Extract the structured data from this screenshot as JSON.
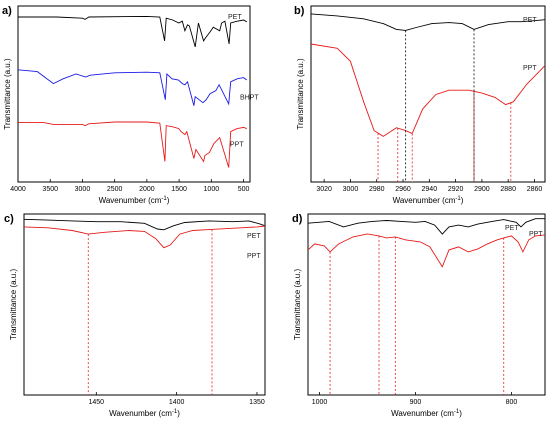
{
  "chart_data": [
    {
      "panel": "a)",
      "type": "line",
      "xlabel": "Wavenumber (cm",
      "xlabel_sup": "-1",
      "ylabel": "Transmittance (a.u.)",
      "x_ticks": [
        4000,
        3500,
        3000,
        2500,
        2000,
        1500,
        1000,
        500
      ],
      "x_tick_labels": [
        "4000",
        "3500",
        "3000",
        "2500",
        "2000",
        "1500",
        "1000",
        "500"
      ],
      "xlim": [
        4000,
        400
      ],
      "series": [
        {
          "name": "PET",
          "color": "#000000",
          "points": [
            [
              4000,
              0.95
            ],
            [
              3600,
              0.95
            ],
            [
              3400,
              0.95
            ],
            [
              3000,
              0.93
            ],
            [
              2960,
              0.91
            ],
            [
              2900,
              0.95
            ],
            [
              2000,
              0.96
            ],
            [
              1800,
              0.95
            ],
            [
              1725,
              0.55
            ],
            [
              1700,
              0.93
            ],
            [
              1600,
              0.9
            ],
            [
              1505,
              0.85
            ],
            [
              1450,
              0.88
            ],
            [
              1410,
              0.72
            ],
            [
              1370,
              0.82
            ],
            [
              1340,
              0.8
            ],
            [
              1250,
              0.45
            ],
            [
              1200,
              0.85
            ],
            [
              1120,
              0.55
            ],
            [
              1090,
              0.6
            ],
            [
              1020,
              0.7
            ],
            [
              970,
              0.78
            ],
            [
              870,
              0.72
            ],
            [
              840,
              0.85
            ],
            [
              790,
              0.88
            ],
            [
              725,
              0.5
            ],
            [
              700,
              0.85
            ],
            [
              600,
              0.88
            ],
            [
              500,
              0.9
            ],
            [
              450,
              0.87
            ]
          ]
        },
        {
          "name": "BHPT",
          "color": "#1a1ae6",
          "points": [
            [
              4000,
              0.95
            ],
            [
              3700,
              0.92
            ],
            [
              3450,
              0.72
            ],
            [
              3300,
              0.8
            ],
            [
              3100,
              0.88
            ],
            [
              2950,
              0.83
            ],
            [
              2880,
              0.86
            ],
            [
              2500,
              0.9
            ],
            [
              2000,
              0.91
            ],
            [
              1800,
              0.9
            ],
            [
              1715,
              0.45
            ],
            [
              1690,
              0.88
            ],
            [
              1610,
              0.8
            ],
            [
              1510,
              0.78
            ],
            [
              1450,
              0.72
            ],
            [
              1410,
              0.7
            ],
            [
              1370,
              0.75
            ],
            [
              1270,
              0.35
            ],
            [
              1250,
              0.5
            ],
            [
              1130,
              0.4
            ],
            [
              1080,
              0.45
            ],
            [
              1020,
              0.55
            ],
            [
              930,
              0.6
            ],
            [
              880,
              0.7
            ],
            [
              730,
              0.38
            ],
            [
              700,
              0.75
            ],
            [
              600,
              0.8
            ],
            [
              500,
              0.82
            ],
            [
              450,
              0.78
            ]
          ]
        },
        {
          "name": "PPT",
          "color": "#e61a1a",
          "points": [
            [
              4000,
              0.95
            ],
            [
              3600,
              0.95
            ],
            [
              3450,
              0.92
            ],
            [
              3000,
              0.92
            ],
            [
              2960,
              0.9
            ],
            [
              2900,
              0.93
            ],
            [
              2500,
              0.96
            ],
            [
              2000,
              0.96
            ],
            [
              1800,
              0.94
            ],
            [
              1720,
              0.3
            ],
            [
              1700,
              0.9
            ],
            [
              1600,
              0.88
            ],
            [
              1505,
              0.85
            ],
            [
              1470,
              0.8
            ],
            [
              1410,
              0.75
            ],
            [
              1380,
              0.8
            ],
            [
              1270,
              0.35
            ],
            [
              1240,
              0.5
            ],
            [
              1120,
              0.3
            ],
            [
              1100,
              0.4
            ],
            [
              1030,
              0.45
            ],
            [
              960,
              0.6
            ],
            [
              870,
              0.7
            ],
            [
              730,
              0.2
            ],
            [
              700,
              0.8
            ],
            [
              600,
              0.85
            ],
            [
              500,
              0.87
            ],
            [
              450,
              0.85
            ]
          ]
        }
      ]
    },
    {
      "panel": "b)",
      "type": "line",
      "xlabel": "Wavenumber (cm",
      "xlabel_sup": "-1",
      "ylabel": "Transmittance (a.u.)",
      "x_ticks": [
        3020,
        3000,
        2980,
        2960,
        2940,
        2920,
        2900,
        2880,
        2860
      ],
      "x_tick_labels": [
        "3020",
        "3000",
        "2980",
        "2960",
        "2940",
        "2920",
        "2900",
        "2880",
        "2860"
      ],
      "xlim": [
        3030,
        2852
      ],
      "marked_x": [
        2979,
        2964,
        2953,
        2906,
        2878
      ],
      "series": [
        {
          "name": "PET",
          "color": "#000000",
          "points": [
            [
              3030,
              0.98
            ],
            [
              3010,
              0.96
            ],
            [
              2990,
              0.93
            ],
            [
              2975,
              0.88
            ],
            [
              2965,
              0.82
            ],
            [
              2958,
              0.81
            ],
            [
              2950,
              0.84
            ],
            [
              2938,
              0.88
            ],
            [
              2925,
              0.89
            ],
            [
              2915,
              0.88
            ],
            [
              2906,
              0.82
            ],
            [
              2895,
              0.87
            ],
            [
              2880,
              0.9
            ],
            [
              2870,
              0.9
            ],
            [
              2860,
              0.91
            ],
            [
              2852,
              0.92
            ]
          ]
        },
        {
          "name": "PPT",
          "color": "#e61a1a",
          "points": [
            [
              3030,
              0.8
            ],
            [
              3010,
              0.77
            ],
            [
              3000,
              0.68
            ],
            [
              2990,
              0.4
            ],
            [
              2982,
              0.2
            ],
            [
              2975,
              0.16
            ],
            [
              2965,
              0.22
            ],
            [
              2958,
              0.2
            ],
            [
              2953,
              0.18
            ],
            [
              2945,
              0.35
            ],
            [
              2935,
              0.45
            ],
            [
              2925,
              0.48
            ],
            [
              2910,
              0.48
            ],
            [
              2900,
              0.46
            ],
            [
              2890,
              0.43
            ],
            [
              2882,
              0.38
            ],
            [
              2876,
              0.4
            ],
            [
              2866,
              0.52
            ],
            [
              2852,
              0.65
            ]
          ]
        }
      ]
    },
    {
      "panel": "c)",
      "type": "line",
      "xlabel": "Wavenumber (cm",
      "xlabel_sup": "-1",
      "ylabel": "Transmittance (a.u.)",
      "x_ticks": [
        1450,
        1400,
        1350
      ],
      "x_tick_labels": [
        "1450",
        "1400",
        "1350"
      ],
      "xlim": [
        1495,
        1345
      ],
      "marked_x": [
        1455,
        1378
      ],
      "series": [
        {
          "name": "PET",
          "color": "#000000",
          "points": [
            [
              1495,
              0.96
            ],
            [
              1480,
              0.95
            ],
            [
              1465,
              0.94
            ],
            [
              1450,
              0.93
            ],
            [
              1435,
              0.93
            ],
            [
              1420,
              0.91
            ],
            [
              1412,
              0.84
            ],
            [
              1408,
              0.83
            ],
            [
              1402,
              0.88
            ],
            [
              1395,
              0.92
            ],
            [
              1380,
              0.94
            ],
            [
              1365,
              0.93
            ],
            [
              1355,
              0.94
            ],
            [
              1348,
              0.9
            ],
            [
              1345,
              0.88
            ]
          ]
        },
        {
          "name": "PPT",
          "color": "#e61a1a",
          "points": [
            [
              1495,
              0.88
            ],
            [
              1480,
              0.87
            ],
            [
              1465,
              0.84
            ],
            [
              1455,
              0.8
            ],
            [
              1445,
              0.82
            ],
            [
              1430,
              0.84
            ],
            [
              1420,
              0.83
            ],
            [
              1413,
              0.75
            ],
            [
              1408,
              0.65
            ],
            [
              1404,
              0.68
            ],
            [
              1398,
              0.8
            ],
            [
              1390,
              0.84
            ],
            [
              1380,
              0.85
            ],
            [
              1370,
              0.86
            ],
            [
              1360,
              0.87
            ],
            [
              1350,
              0.88
            ],
            [
              1345,
              0.89
            ]
          ]
        }
      ]
    },
    {
      "panel": "d)",
      "type": "line",
      "xlabel": "Wavenumber (cm",
      "xlabel_sup": "-1",
      "ylabel": "Transmittance (a.u.)",
      "x_ticks": [
        1000,
        900,
        800
      ],
      "x_tick_labels": [
        "1000",
        "900",
        "800"
      ],
      "xlim": [
        1012,
        765
      ],
      "marked_x": [
        989,
        938,
        921,
        808
      ],
      "series": [
        {
          "name": "PET",
          "color": "#000000",
          "points": [
            [
              1012,
              0.92
            ],
            [
              990,
              0.94
            ],
            [
              975,
              0.88
            ],
            [
              960,
              0.92
            ],
            [
              945,
              0.94
            ],
            [
              930,
              0.95
            ],
            [
              915,
              0.94
            ],
            [
              900,
              0.93
            ],
            [
              890,
              0.94
            ],
            [
              880,
              0.9
            ],
            [
              872,
              0.8
            ],
            [
              865,
              0.88
            ],
            [
              855,
              0.9
            ],
            [
              845,
              0.88
            ],
            [
              835,
              0.91
            ],
            [
              820,
              0.94
            ],
            [
              808,
              0.96
            ],
            [
              795,
              0.93
            ],
            [
              790,
              0.88
            ],
            [
              785,
              0.93
            ],
            [
              775,
              0.97
            ],
            [
              765,
              0.97
            ]
          ]
        },
        {
          "name": "PPT",
          "color": "#e61a1a",
          "points": [
            [
              1012,
              0.72
            ],
            [
              1005,
              0.78
            ],
            [
              995,
              0.76
            ],
            [
              989,
              0.7
            ],
            [
              980,
              0.78
            ],
            [
              965,
              0.85
            ],
            [
              950,
              0.88
            ],
            [
              938,
              0.86
            ],
            [
              930,
              0.84
            ],
            [
              921,
              0.85
            ],
            [
              910,
              0.82
            ],
            [
              895,
              0.8
            ],
            [
              885,
              0.75
            ],
            [
              872,
              0.55
            ],
            [
              865,
              0.72
            ],
            [
              855,
              0.75
            ],
            [
              845,
              0.7
            ],
            [
              835,
              0.73
            ],
            [
              825,
              0.78
            ],
            [
              815,
              0.82
            ],
            [
              808,
              0.84
            ],
            [
              800,
              0.86
            ],
            [
              793,
              0.8
            ],
            [
              788,
              0.7
            ],
            [
              782,
              0.82
            ],
            [
              775,
              0.86
            ],
            [
              765,
              0.87
            ]
          ]
        }
      ]
    }
  ]
}
